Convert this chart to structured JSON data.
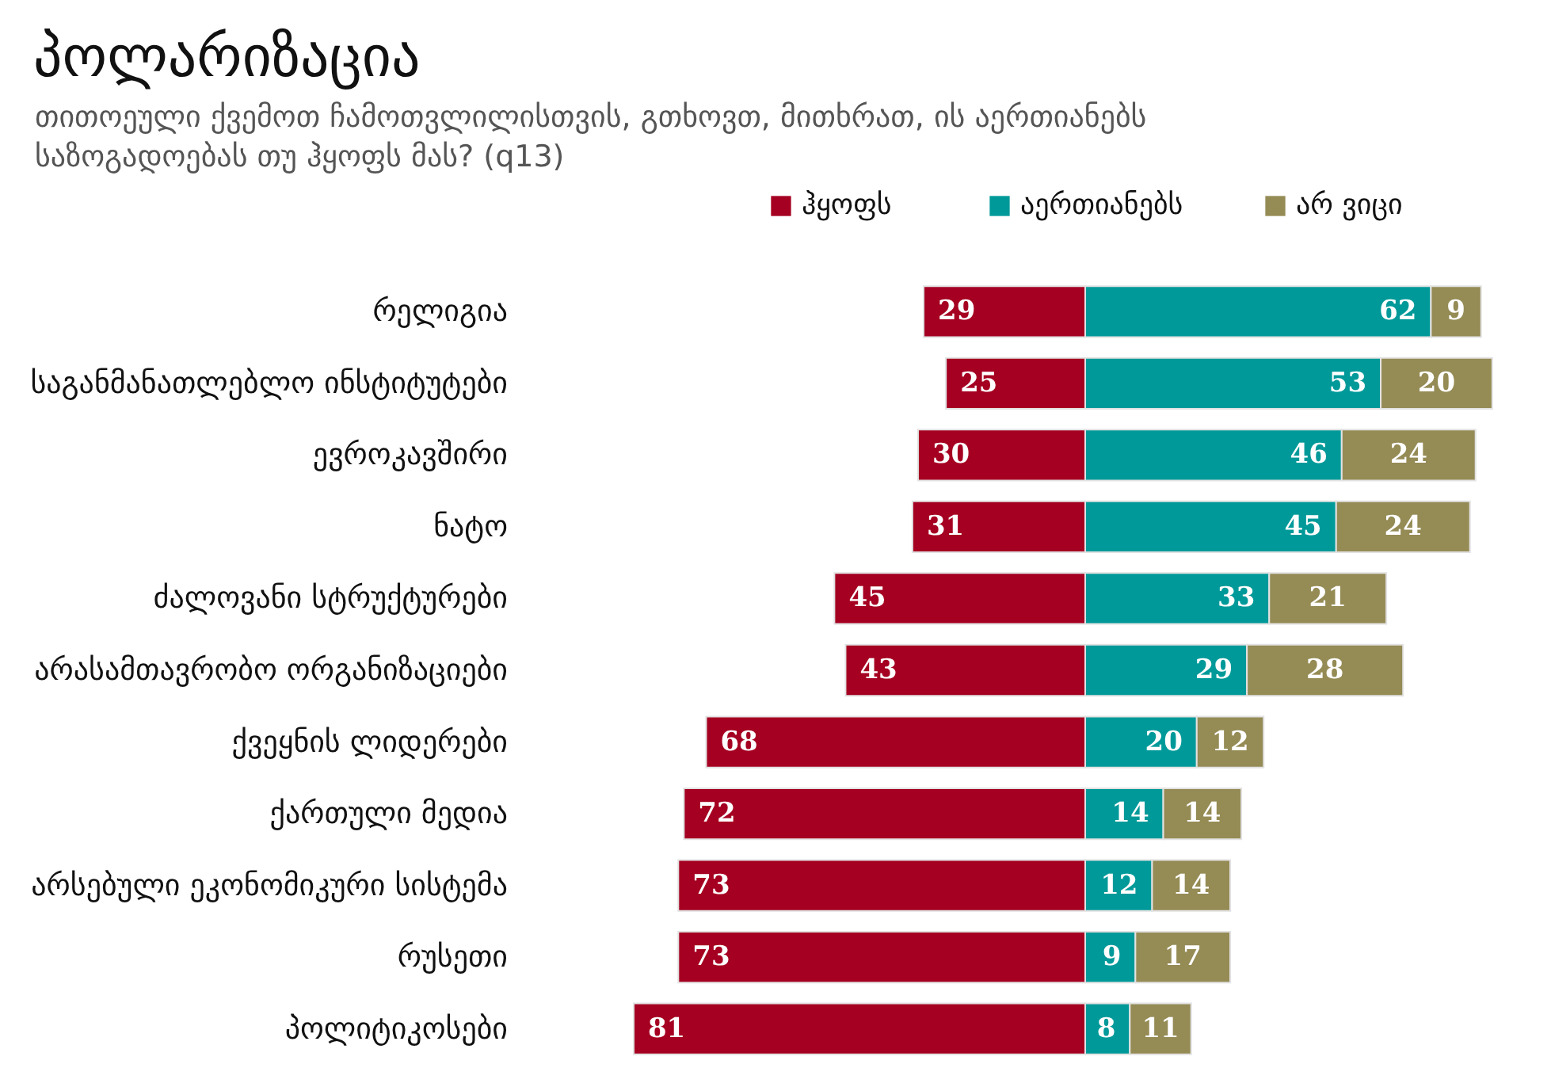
{
  "chart_data": [
    {
      "type": "bar",
      "orientation": "horizontal",
      "title": "პოლარიზაცია",
      "subtitle": "თითოეული ქვემოთ ჩამოთვლილისთვის, გთხოვთ, მითხრათ, ის აერთიანებს საზოგადოებას თუ ჰყოფს მას? (q13)",
      "categories": [
        "რელიგია",
        "საგანმანათლებლო ინსტიტუტები",
        "ევროკავშირი",
        "ნატო",
        "ძალოვანი სტრუქტურები",
        "არასამთავრობო ორგანიზაციები",
        "ქვეყნის ლიდერები",
        "ქართული მედია",
        "არსებული ეკონომიკური სისტემა",
        "რუსეთი",
        "პოლიტიკოსები"
      ],
      "series": [
        {
          "name": "ჰყოფს",
          "color": "#a50021",
          "values": [
            29,
            25,
            30,
            31,
            45,
            43,
            68,
            72,
            73,
            73,
            81
          ]
        }
      ],
      "xlim": [
        81,
        0
      ],
      "data_labels": true,
      "legend": "top",
      "grid": false,
      "tick_labels": "y"
    },
    {
      "type": "bar",
      "orientation": "horizontal",
      "stacked": true,
      "categories": [
        null,
        null,
        null,
        null,
        null,
        null,
        null,
        null,
        null,
        null,
        null
      ],
      "series": [
        {
          "name": "აერთიანებს",
          "color": "#009999",
          "values": [
            62,
            53,
            46,
            45,
            33,
            29,
            20,
            14,
            12,
            9,
            8
          ]
        },
        {
          "name": "არ ვიცი",
          "color": "#958b55",
          "values": [
            9,
            20,
            24,
            24,
            21,
            28,
            12,
            14,
            14,
            17,
            11
          ]
        }
      ],
      "xlim": [
        0,
        73
      ],
      "data_labels": true,
      "legend": "top",
      "grid": false,
      "tick_labels": false
    }
  ]
}
